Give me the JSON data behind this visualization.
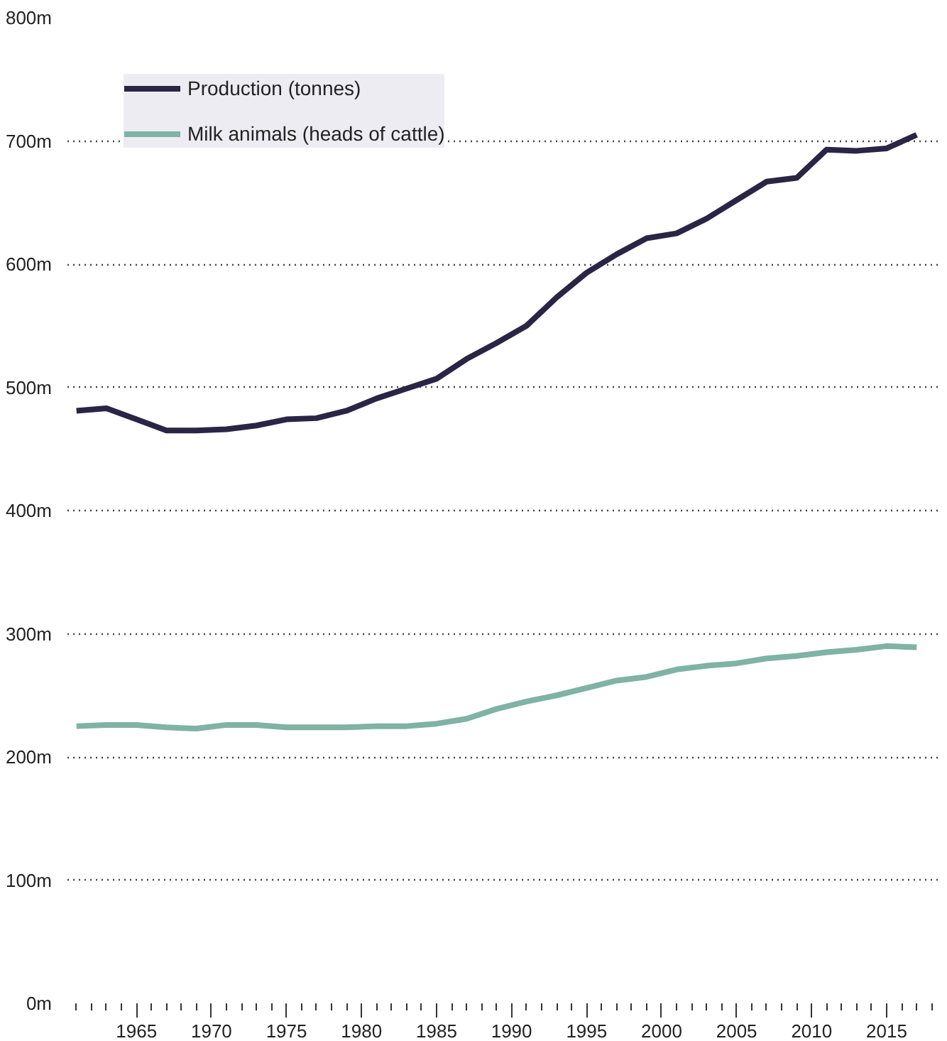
{
  "chart_data": {
    "type": "line",
    "x": [
      1961,
      1963,
      1965,
      1967,
      1969,
      1971,
      1973,
      1975,
      1977,
      1979,
      1981,
      1983,
      1985,
      1987,
      1989,
      1991,
      1993,
      1995,
      1997,
      1999,
      2001,
      2003,
      2005,
      2007,
      2009,
      2011,
      2013,
      2015,
      2017
    ],
    "series": [
      {
        "name": "Production (tonnes)",
        "color": "#2a2545",
        "values": [
          481,
          483,
          474,
          465,
          465,
          466,
          469,
          474,
          475,
          481,
          491,
          499,
          507,
          523,
          536,
          550,
          573,
          593,
          608,
          621,
          625,
          637,
          652,
          667,
          670,
          693,
          692,
          694,
          705
        ]
      },
      {
        "name": "Milk animals (heads of cattle)",
        "color": "#7fb3a3",
        "values": [
          225,
          226,
          226,
          224,
          223,
          226,
          226,
          224,
          224,
          224,
          225,
          225,
          227,
          231,
          239,
          245,
          250,
          256,
          262,
          265,
          271,
          274,
          276,
          280,
          282,
          285,
          287,
          290,
          289
        ]
      }
    ],
    "xlim": [
      1960.4,
      2018.5
    ],
    "xticks": [
      1965,
      1970,
      1975,
      1980,
      1985,
      1990,
      1995,
      2000,
      2005,
      2010,
      2015
    ],
    "ylim": [
      0,
      800
    ],
    "yticks": [
      {
        "value": 0,
        "label": "0m"
      },
      {
        "value": 100,
        "label": "100m"
      },
      {
        "value": 200,
        "label": "200m"
      },
      {
        "value": 300,
        "label": "300m"
      },
      {
        "value": 400,
        "label": "400m"
      },
      {
        "value": 500,
        "label": "500m"
      },
      {
        "value": 600,
        "label": "600m"
      },
      {
        "value": 700,
        "label": "700m"
      },
      {
        "value": 800,
        "label": "800m"
      }
    ],
    "grid": "y",
    "legend": "top left",
    "marker": "none",
    "line_style": "solid"
  }
}
